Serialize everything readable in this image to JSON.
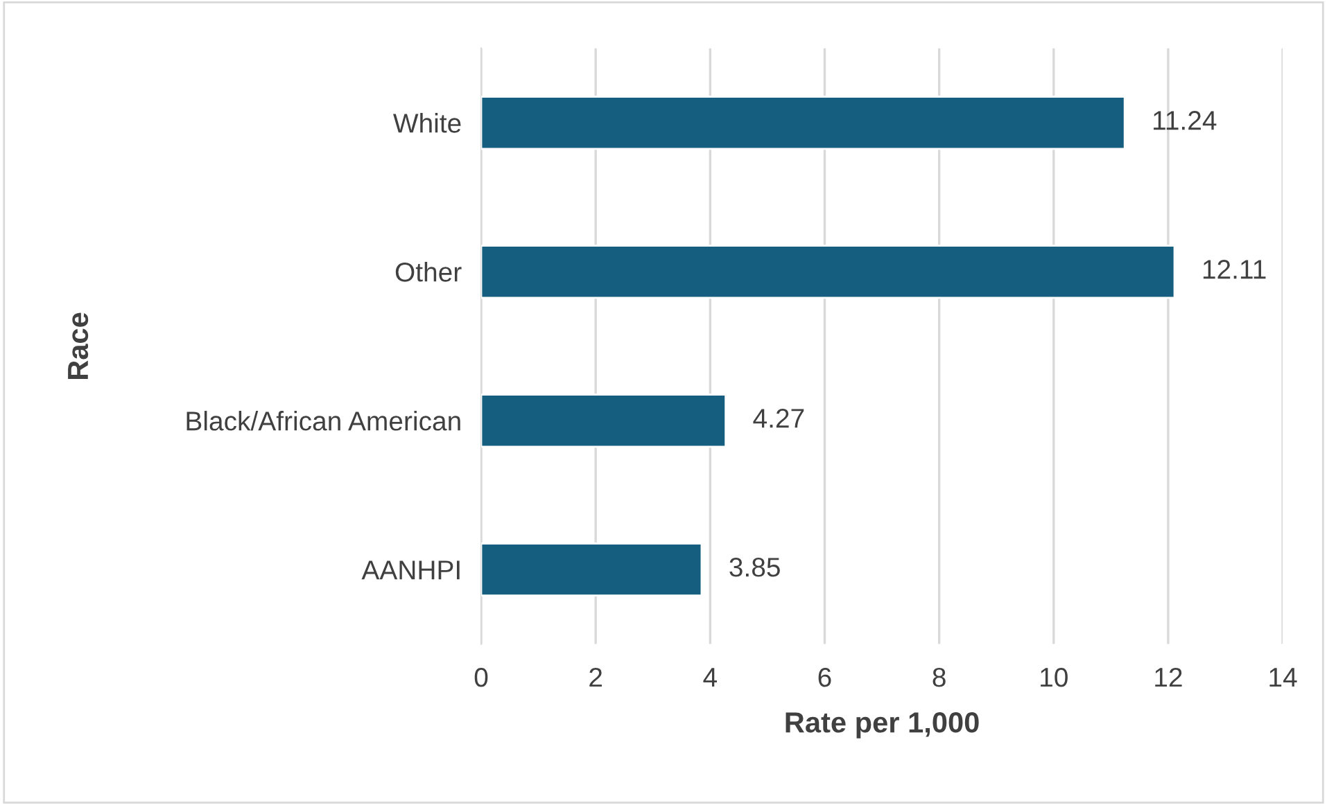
{
  "chart_data": {
    "type": "bar",
    "orientation": "horizontal",
    "xlabel": "Rate per 1,000",
    "ylabel": "Race",
    "categories": [
      "White",
      "Other",
      "Black/African American",
      "AANHPI"
    ],
    "values": [
      11.24,
      12.11,
      4.27,
      3.85
    ],
    "color": "#165e80",
    "xlim": [
      0,
      14
    ],
    "xticks": [
      0,
      2,
      4,
      6,
      8,
      10,
      12,
      14
    ],
    "grid": "x",
    "data_labels": true,
    "legend": false
  }
}
